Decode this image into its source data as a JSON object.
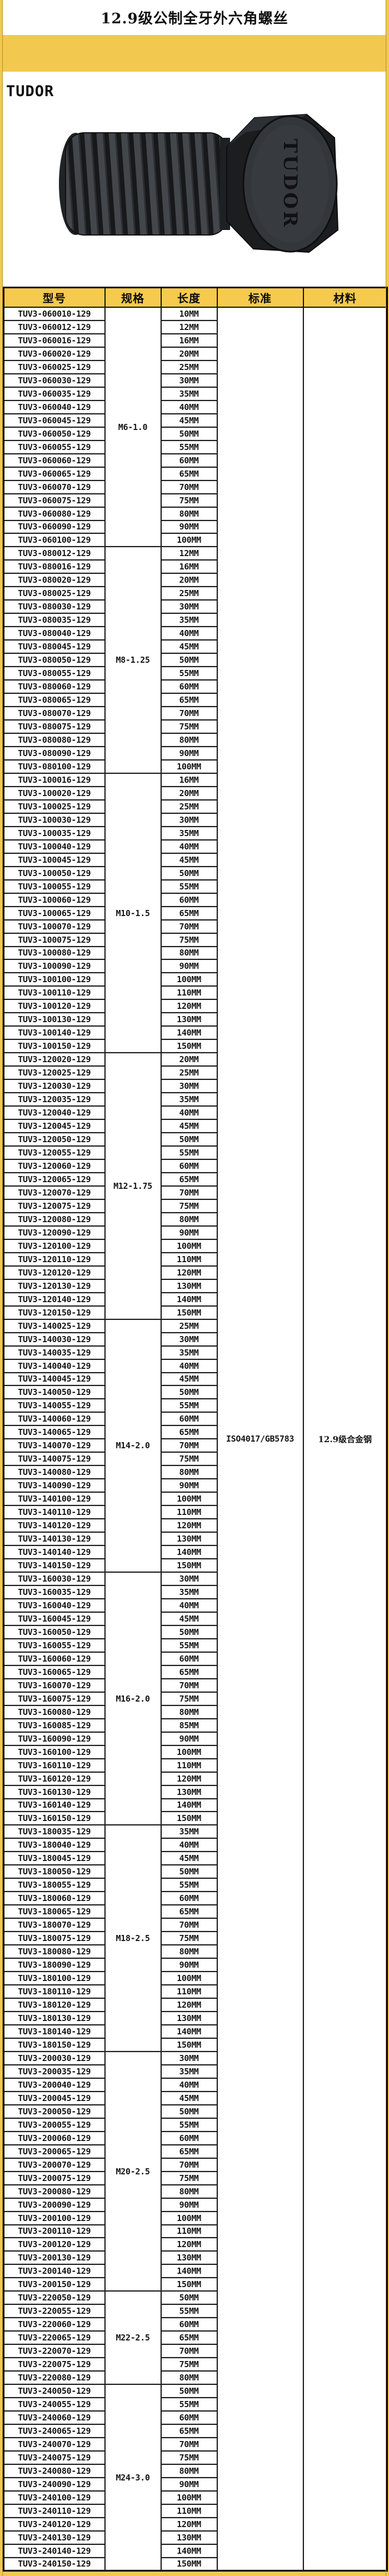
{
  "page": {
    "title": "12.9级公制全牙外六角螺丝",
    "brand": "TUDOR",
    "bolt_image": {
      "engraving": "TUDOR",
      "description": "black alloy steel hex head bolt, full thread"
    }
  },
  "colors": {
    "page_background": "#F2C84F",
    "header_background": "#F6CA4E",
    "block_background": "#FFFFFF",
    "table_border": "#000000",
    "table_text": "#151515",
    "bolt_body": "#2B2E31"
  },
  "table": {
    "headers": [
      "型号",
      "规格",
      "长度",
      "标准",
      "材料"
    ],
    "standard": "ISO4017/GB5783",
    "material": "12.9级合金钢",
    "sections": [
      {
        "spec": "M6-1.0",
        "models": [
          "TUV3-060010-129",
          "TUV3-060012-129",
          "TUV3-060016-129",
          "TUV3-060020-129",
          "TUV3-060025-129",
          "TUV3-060030-129",
          "TUV3-060035-129",
          "TUV3-060040-129",
          "TUV3-060045-129",
          "TUV3-060050-129",
          "TUV3-060055-129",
          "TUV3-060060-129",
          "TUV3-060065-129",
          "TUV3-060070-129",
          "TUV3-060075-129",
          "TUV3-060080-129",
          "TUV3-060090-129",
          "TUV3-060100-129"
        ],
        "lengths": [
          "10MM",
          "12MM",
          "16MM",
          "20MM",
          "25MM",
          "30MM",
          "35MM",
          "40MM",
          "45MM",
          "50MM",
          "55MM",
          "60MM",
          "65MM",
          "70MM",
          "75MM",
          "80MM",
          "90MM",
          "100MM"
        ]
      },
      {
        "spec": "M8-1.25",
        "models": [
          "TUV3-080012-129",
          "TUV3-080016-129",
          "TUV3-080020-129",
          "TUV3-080025-129",
          "TUV3-080030-129",
          "TUV3-080035-129",
          "TUV3-080040-129",
          "TUV3-080045-129",
          "TUV3-080050-129",
          "TUV3-080055-129",
          "TUV3-080060-129",
          "TUV3-080065-129",
          "TUV3-080070-129",
          "TUV3-080075-129",
          "TUV3-080080-129",
          "TUV3-080090-129",
          "TUV3-080100-129"
        ],
        "lengths": [
          "12MM",
          "16MM",
          "20MM",
          "25MM",
          "30MM",
          "35MM",
          "40MM",
          "45MM",
          "50MM",
          "55MM",
          "60MM",
          "65MM",
          "70MM",
          "75MM",
          "80MM",
          "90MM",
          "100MM"
        ]
      },
      {
        "spec": "M10-1.5",
        "models": [
          "TUV3-100016-129",
          "TUV3-100020-129",
          "TUV3-100025-129",
          "TUV3-100030-129",
          "TUV3-100035-129",
          "TUV3-100040-129",
          "TUV3-100045-129",
          "TUV3-100050-129",
          "TUV3-100055-129",
          "TUV3-100060-129",
          "TUV3-100065-129",
          "TUV3-100070-129",
          "TUV3-100075-129",
          "TUV3-100080-129",
          "TUV3-100090-129",
          "TUV3-100100-129",
          "TUV3-100110-129",
          "TUV3-100120-129",
          "TUV3-100130-129",
          "TUV3-100140-129",
          "TUV3-100150-129"
        ],
        "lengths": [
          "16MM",
          "20MM",
          "25MM",
          "30MM",
          "35MM",
          "40MM",
          "45MM",
          "50MM",
          "55MM",
          "60MM",
          "65MM",
          "70MM",
          "75MM",
          "80MM",
          "90MM",
          "100MM",
          "110MM",
          "120MM",
          "130MM",
          "140MM",
          "150MM"
        ]
      },
      {
        "spec": "M12-1.75",
        "models": [
          "TUV3-120020-129",
          "TUV3-120025-129",
          "TUV3-120030-129",
          "TUV3-120035-129",
          "TUV3-120040-129",
          "TUV3-120045-129",
          "TUV3-120050-129",
          "TUV3-120055-129",
          "TUV3-120060-129",
          "TUV3-120065-129",
          "TUV3-120070-129",
          "TUV3-120075-129",
          "TUV3-120080-129",
          "TUV3-120090-129",
          "TUV3-120100-129",
          "TUV3-120110-129",
          "TUV3-120120-129",
          "TUV3-120130-129",
          "TUV3-120140-129",
          "TUV3-120150-129"
        ],
        "lengths": [
          "20MM",
          "25MM",
          "30MM",
          "35MM",
          "40MM",
          "45MM",
          "50MM",
          "55MM",
          "60MM",
          "65MM",
          "70MM",
          "75MM",
          "80MM",
          "90MM",
          "100MM",
          "110MM",
          "120MM",
          "130MM",
          "140MM",
          "150MM"
        ]
      },
      {
        "spec": "M14-2.0",
        "models": [
          "TUV3-140025-129",
          "TUV3-140030-129",
          "TUV3-140035-129",
          "TUV3-140040-129",
          "TUV3-140045-129",
          "TUV3-140050-129",
          "TUV3-140055-129",
          "TUV3-140060-129",
          "TUV3-140065-129",
          "TUV3-140070-129",
          "TUV3-140075-129",
          "TUV3-140080-129",
          "TUV3-140090-129",
          "TUV3-140100-129",
          "TUV3-140110-129",
          "TUV3-140120-129",
          "TUV3-140130-129",
          "TUV3-140140-129",
          "TUV3-140150-129"
        ],
        "lengths": [
          "25MM",
          "30MM",
          "35MM",
          "40MM",
          "45MM",
          "50MM",
          "55MM",
          "60MM",
          "65MM",
          "70MM",
          "75MM",
          "80MM",
          "90MM",
          "100MM",
          "110MM",
          "120MM",
          "130MM",
          "140MM",
          "150MM"
        ]
      },
      {
        "spec": "M16-2.0",
        "models": [
          "TUV3-160030-129",
          "TUV3-160035-129",
          "TUV3-160040-129",
          "TUV3-160045-129",
          "TUV3-160050-129",
          "TUV3-160055-129",
          "TUV3-160060-129",
          "TUV3-160065-129",
          "TUV3-160070-129",
          "TUV3-160075-129",
          "TUV3-160080-129",
          "TUV3-160085-129",
          "TUV3-160090-129",
          "TUV3-160100-129",
          "TUV3-160110-129",
          "TUV3-160120-129",
          "TUV3-160130-129",
          "TUV3-160140-129",
          "TUV3-160150-129"
        ],
        "lengths": [
          "30MM",
          "35MM",
          "40MM",
          "45MM",
          "50MM",
          "55MM",
          "60MM",
          "65MM",
          "70MM",
          "75MM",
          "80MM",
          "85MM",
          "90MM",
          "100MM",
          "110MM",
          "120MM",
          "130MM",
          "140MM",
          "150MM"
        ]
      },
      {
        "spec": "M18-2.5",
        "models": [
          "TUV3-180035-129",
          "TUV3-180040-129",
          "TUV3-180045-129",
          "TUV3-180050-129",
          "TUV3-180055-129",
          "TUV3-180060-129",
          "TUV3-180065-129",
          "TUV3-180070-129",
          "TUV3-180075-129",
          "TUV3-180080-129",
          "TUV3-180090-129",
          "TUV3-180100-129",
          "TUV3-180110-129",
          "TUV3-180120-129",
          "TUV3-180130-129",
          "TUV3-180140-129",
          "TUV3-180150-129"
        ],
        "lengths": [
          "35MM",
          "40MM",
          "45MM",
          "50MM",
          "55MM",
          "60MM",
          "65MM",
          "70MM",
          "75MM",
          "80MM",
          "90MM",
          "100MM",
          "110MM",
          "120MM",
          "130MM",
          "140MM",
          "150MM"
        ]
      },
      {
        "spec": "M20-2.5",
        "models": [
          "TUV3-200030-129",
          "TUV3-200035-129",
          "TUV3-200040-129",
          "TUV3-200045-129",
          "TUV3-200050-129",
          "TUV3-200055-129",
          "TUV3-200060-129",
          "TUV3-200065-129",
          "TUV3-200070-129",
          "TUV3-200075-129",
          "TUV3-200080-129",
          "TUV3-200090-129",
          "TUV3-200100-129",
          "TUV3-200110-129",
          "TUV3-200120-129",
          "TUV3-200130-129",
          "TUV3-200140-129",
          "TUV3-200150-129"
        ],
        "lengths": [
          "30MM",
          "35MM",
          "40MM",
          "45MM",
          "50MM",
          "55MM",
          "60MM",
          "65MM",
          "70MM",
          "75MM",
          "80MM",
          "90MM",
          "100MM",
          "110MM",
          "120MM",
          "130MM",
          "140MM",
          "150MM"
        ]
      },
      {
        "spec": "M22-2.5",
        "models": [
          "TUV3-220050-129",
          "TUV3-220055-129",
          "TUV3-220060-129",
          "TUV3-220065-129",
          "TUV3-220070-129",
          "TUV3-220075-129",
          "TUV3-220080-129"
        ],
        "lengths": [
          "50MM",
          "55MM",
          "60MM",
          "65MM",
          "70MM",
          "75MM",
          "80MM"
        ]
      },
      {
        "spec": "M24-3.0",
        "models": [
          "TUV3-240050-129",
          "TUV3-240055-129",
          "TUV3-240060-129",
          "TUV3-240065-129",
          "TUV3-240070-129",
          "TUV3-240075-129",
          "TUV3-240080-129",
          "TUV3-240090-129",
          "TUV3-240100-129",
          "TUV3-240110-129",
          "TUV3-240120-129",
          "TUV3-240130-129",
          "TUV3-240140-129",
          "TUV3-240150-129"
        ],
        "lengths": [
          "50MM",
          "55MM",
          "60MM",
          "65MM",
          "70MM",
          "75MM",
          "80MM",
          "90MM",
          "100MM",
          "110MM",
          "120MM",
          "130MM",
          "140MM",
          "150MM"
        ]
      }
    ]
  }
}
